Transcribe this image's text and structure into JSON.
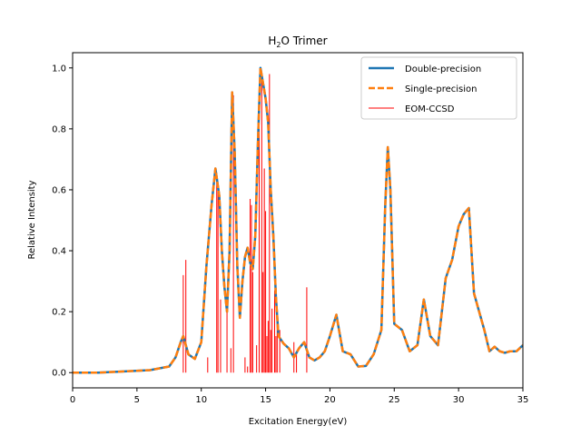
{
  "chart_data": {
    "type": "line",
    "title": "H",
    "title_sub": "2",
    "title_rest": "O Trimer",
    "xlabel": "Excitation Energy(eV)",
    "ylabel": "Relative Intensity",
    "xlim": [
      0,
      35
    ],
    "ylim": [
      -0.05,
      1.05
    ],
    "xticks": [
      0,
      5,
      10,
      15,
      20,
      25,
      30,
      35
    ],
    "yticks": [
      0.0,
      0.2,
      0.4,
      0.6,
      0.8,
      1.0
    ],
    "xtick_labels": [
      "0",
      "5",
      "10",
      "15",
      "20",
      "25",
      "30",
      "35"
    ],
    "ytick_labels": [
      "0.0",
      "0.2",
      "0.4",
      "0.6",
      "0.8",
      "1.0"
    ],
    "legend_position": "top-right",
    "grid": false,
    "curve_x": [
      0,
      2,
      4,
      6,
      7.5,
      8.0,
      8.4,
      8.6,
      8.8,
      9.0,
      9.5,
      10.0,
      10.4,
      10.8,
      11.1,
      11.4,
      11.6,
      11.8,
      12.0,
      12.2,
      12.4,
      12.6,
      12.8,
      13.0,
      13.2,
      13.4,
      13.6,
      13.8,
      14.0,
      14.2,
      14.4,
      14.6,
      14.8,
      15.0,
      15.2,
      15.4,
      15.6,
      15.8,
      16.0,
      16.4,
      16.8,
      17.2,
      17.6,
      18.0,
      18.4,
      18.8,
      19.2,
      19.6,
      20.0,
      20.5,
      21.0,
      21.6,
      22.2,
      22.8,
      23.4,
      24.0,
      24.3,
      24.5,
      24.7,
      25.0,
      25.6,
      26.2,
      26.8,
      27.3,
      27.8,
      28.4,
      29.0,
      29.5,
      30.0,
      30.4,
      30.8,
      31.2,
      31.6,
      32.0,
      32.4,
      32.8,
      33.2,
      33.6,
      34.0,
      34.5,
      35.0
    ],
    "curve_y": [
      0.0,
      0.0,
      0.004,
      0.008,
      0.02,
      0.05,
      0.1,
      0.12,
      0.09,
      0.06,
      0.045,
      0.1,
      0.35,
      0.55,
      0.67,
      0.58,
      0.4,
      0.28,
      0.2,
      0.4,
      0.92,
      0.72,
      0.35,
      0.18,
      0.3,
      0.38,
      0.41,
      0.36,
      0.34,
      0.45,
      0.75,
      1.0,
      0.95,
      0.9,
      0.82,
      0.6,
      0.45,
      0.25,
      0.12,
      0.095,
      0.08,
      0.05,
      0.08,
      0.1,
      0.05,
      0.04,
      0.05,
      0.07,
      0.12,
      0.19,
      0.07,
      0.06,
      0.02,
      0.022,
      0.06,
      0.14,
      0.55,
      0.74,
      0.6,
      0.16,
      0.14,
      0.07,
      0.09,
      0.24,
      0.12,
      0.09,
      0.31,
      0.37,
      0.48,
      0.52,
      0.54,
      0.26,
      0.2,
      0.14,
      0.07,
      0.085,
      0.07,
      0.065,
      0.07,
      0.07,
      0.09
    ],
    "stick_x": [
      8.6,
      8.8,
      10.5,
      11.2,
      11.3,
      11.5,
      12.0,
      12.3,
      12.5,
      13.4,
      13.6,
      13.8,
      13.9,
      14.0,
      14.3,
      14.5,
      14.7,
      14.8,
      14.9,
      15.0,
      15.1,
      15.2,
      15.3,
      15.4,
      15.5,
      15.7,
      15.8,
      15.9,
      16.1,
      17.2,
      17.4,
      18.2
    ],
    "stick_y": [
      0.32,
      0.37,
      0.05,
      0.65,
      0.62,
      0.24,
      0.24,
      0.08,
      0.91,
      0.05,
      0.02,
      0.57,
      0.55,
      0.33,
      0.09,
      0.8,
      0.96,
      0.33,
      0.67,
      0.53,
      0.12,
      0.17,
      0.98,
      0.14,
      0.21,
      0.27,
      0.12,
      0.19,
      0.14,
      0.1,
      0.07,
      0.28
    ],
    "series": [
      {
        "name": "Double-precision",
        "color": "#1f77b4",
        "style": "solid"
      },
      {
        "name": "Single-precision",
        "color": "#ff7f0e",
        "style": "dashed"
      },
      {
        "name": "EOM-CCSD",
        "color": "#ff0000",
        "style": "sticks"
      }
    ]
  }
}
